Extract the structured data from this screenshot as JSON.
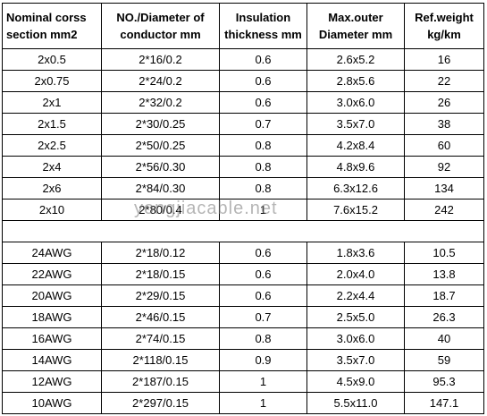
{
  "table": {
    "header": [
      [
        "Nominal corss",
        "section mm2"
      ],
      [
        "NO./Diameter of",
        "conductor mm"
      ],
      [
        "Insulation",
        "thickness mm"
      ],
      [
        "Max.outer",
        "Diameter mm"
      ],
      [
        "Ref.weight",
        "kg/km"
      ]
    ],
    "groups": [
      {
        "rows": [
          [
            "2x0.5",
            "2*16/0.2",
            "0.6",
            "2.6x5.2",
            "16"
          ],
          [
            "2x0.75",
            "2*24/0.2",
            "0.6",
            "2.8x5.6",
            "22"
          ],
          [
            "2x1",
            "2*32/0.2",
            "0.6",
            "3.0x6.0",
            "26"
          ],
          [
            "2x1.5",
            "2*30/0.25",
            "0.7",
            "3.5x7.0",
            "38"
          ],
          [
            "2x2.5",
            "2*50/0.25",
            "0.8",
            "4.2x8.4",
            "60"
          ],
          [
            "2x4",
            "2*56/0.30",
            "0.8",
            "4.8x9.6",
            "92"
          ],
          [
            "2x6",
            "2*84/0.30",
            "0.8",
            "6.3x12.6",
            "134"
          ],
          [
            "2x10",
            "2*80/0.4",
            "1",
            "7.6x15.2",
            "242"
          ]
        ]
      },
      {
        "rows": [
          [
            "24AWG",
            "2*18/0.12",
            "0.6",
            "1.8x3.6",
            "10.5"
          ],
          [
            "22AWG",
            "2*18/0.15",
            "0.6",
            "2.0x4.0",
            "13.8"
          ],
          [
            "20AWG",
            "2*29/0.15",
            "0.6",
            "2.2x4.4",
            "18.7"
          ],
          [
            "18AWG",
            "2*46/0.15",
            "0.7",
            "2.5x5.0",
            "26.3"
          ],
          [
            "16AWG",
            "2*74/0.15",
            "0.8",
            "3.0x6.0",
            "40"
          ],
          [
            "14AWG",
            "2*118/0.15",
            "0.9",
            "3.5x7.0",
            "59"
          ],
          [
            "12AWG",
            "2*187/0.15",
            "1",
            "4.5x9.0",
            "95.3"
          ],
          [
            "10AWG",
            "2*297/0.15",
            "1",
            "5.5x11.0",
            "147.1"
          ]
        ]
      }
    ]
  },
  "watermark": "yongjiacable.net"
}
